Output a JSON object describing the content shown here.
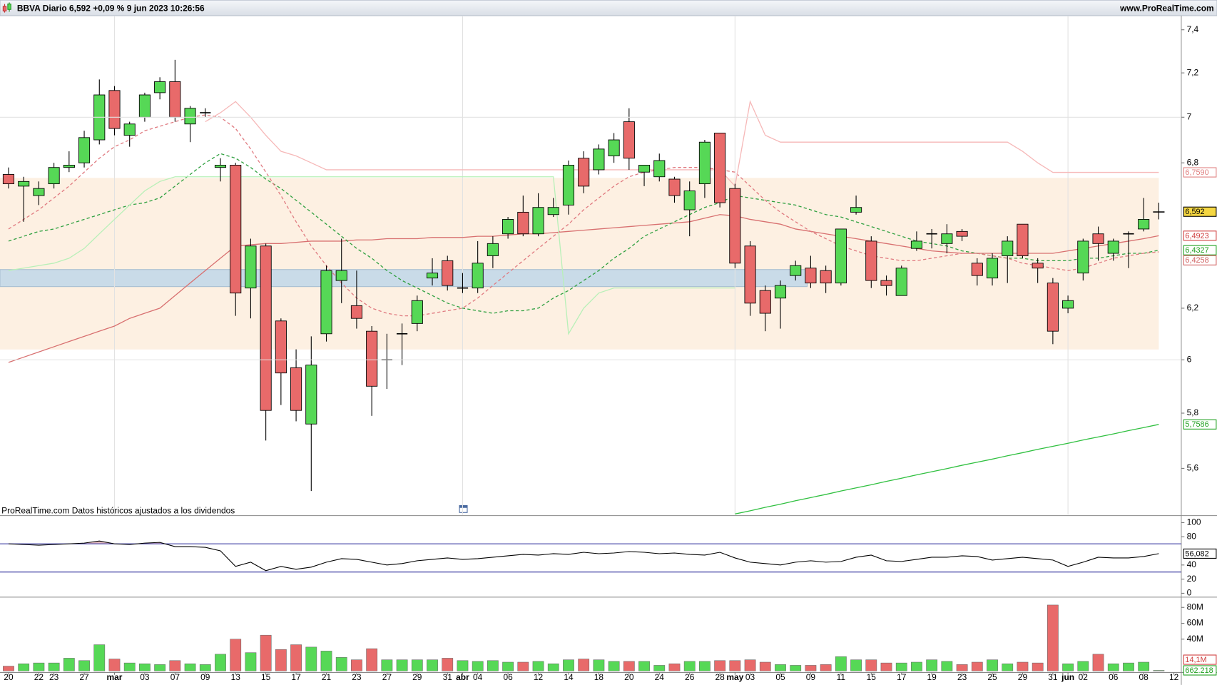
{
  "header": {
    "title": "BBVA Diario 6,592 +0,09 % 9 jun 2023 10:26:56",
    "source": "www.ProRealTime.com"
  },
  "footer_note": "ProRealTime.com Datos históricos ajustados a los dividendos",
  "chart_data": [
    {
      "type": "candlestick",
      "log_scale": true,
      "up_color": "#56d856",
      "down_color": "#e86a6a",
      "categories": [
        "20",
        null,
        "22",
        "23",
        null,
        "27",
        null,
        "mar",
        null,
        "03",
        null,
        "07",
        null,
        "09",
        null,
        "13",
        null,
        "15",
        null,
        "17",
        null,
        "21",
        null,
        "23",
        null,
        "27",
        null,
        "29",
        null,
        "31",
        "abr",
        "04",
        null,
        "06",
        null,
        "12",
        null,
        "14",
        null,
        "18",
        null,
        "20",
        null,
        "24",
        null,
        "26",
        null,
        "28",
        "may",
        "03",
        null,
        "05",
        null,
        "09",
        null,
        "11",
        null,
        "15",
        null,
        "17",
        null,
        "19",
        null,
        "23",
        null,
        "25",
        null,
        "29",
        null,
        "31",
        "jun",
        "02",
        null,
        "06",
        null,
        "08",
        null,
        "12"
      ],
      "open": [
        6.75,
        6.7,
        6.66,
        6.71,
        6.78,
        6.8,
        6.9,
        7.12,
        6.92,
        7.0,
        7.11,
        7.16,
        6.97,
        7.02,
        6.78,
        6.79,
        6.28,
        6.45,
        6.15,
        5.97,
        5.76,
        6.1,
        6.31,
        6.21,
        6.11,
        6.0,
        6.1,
        6.14,
        6.32,
        6.39,
        6.28,
        6.28,
        6.41,
        6.5,
        6.59,
        6.5,
        6.58,
        6.62,
        6.82,
        6.77,
        6.83,
        6.98,
        6.76,
        6.74,
        6.73,
        6.6,
        6.71,
        6.93,
        6.69,
        6.45,
        6.27,
        6.24,
        6.33,
        6.36,
        6.35,
        6.3,
        6.59,
        6.47,
        6.31,
        6.25,
        6.44,
        6.5,
        6.46,
        6.51,
        6.38,
        6.32,
        6.41,
        6.54,
        6.38,
        6.3,
        6.2,
        6.34,
        6.5,
        6.42,
        6.5,
        6.52,
        6.59,
        null
      ],
      "high": [
        6.78,
        6.74,
        6.72,
        6.8,
        6.85,
        6.94,
        7.17,
        7.14,
        6.98,
        7.11,
        7.18,
        7.26,
        7.05,
        7.04,
        6.82,
        6.8,
        6.48,
        6.46,
        6.16,
        6.04,
        6.09,
        6.37,
        6.48,
        6.35,
        6.13,
        6.1,
        6.14,
        6.25,
        6.4,
        6.41,
        6.34,
        6.47,
        6.49,
        6.57,
        6.66,
        6.67,
        6.65,
        6.81,
        6.85,
        6.88,
        6.93,
        7.04,
        6.79,
        6.84,
        6.74,
        6.72,
        6.9,
        6.93,
        6.71,
        6.47,
        6.29,
        6.31,
        6.39,
        6.41,
        6.37,
        6.52,
        6.66,
        6.49,
        6.33,
        6.37,
        6.51,
        6.52,
        6.54,
        6.52,
        6.4,
        6.42,
        6.49,
        6.54,
        6.4,
        6.32,
        6.25,
        6.48,
        6.53,
        6.48,
        6.51,
        6.65,
        6.63,
        null
      ],
      "low": [
        6.69,
        6.55,
        6.62,
        6.69,
        6.76,
        6.78,
        6.88,
        6.92,
        6.87,
        6.98,
        7.08,
        6.98,
        6.89,
        7.0,
        6.72,
        6.17,
        6.16,
        5.7,
        5.83,
        5.77,
        5.52,
        6.07,
        6.22,
        6.12,
        5.79,
        5.89,
        5.98,
        6.11,
        6.29,
        6.27,
        6.26,
        6.26,
        6.36,
        6.48,
        6.49,
        6.49,
        6.57,
        6.58,
        6.67,
        6.75,
        6.8,
        6.77,
        6.7,
        6.72,
        6.63,
        6.49,
        6.65,
        6.61,
        6.36,
        6.17,
        6.11,
        6.12,
        6.31,
        6.28,
        6.26,
        6.29,
        6.58,
        6.28,
        6.25,
        6.25,
        6.43,
        6.44,
        6.42,
        6.47,
        6.29,
        6.29,
        6.3,
        6.4,
        6.3,
        6.06,
        6.18,
        6.31,
        6.39,
        6.39,
        6.36,
        6.51,
        6.56,
        null
      ],
      "close": [
        6.71,
        6.72,
        6.69,
        6.78,
        6.79,
        6.91,
        7.1,
        6.95,
        6.97,
        7.1,
        7.16,
        7.0,
        7.04,
        7.02,
        6.79,
        6.26,
        6.45,
        5.81,
        5.95,
        5.81,
        5.98,
        6.35,
        6.35,
        6.16,
        5.9,
        6.0,
        6.1,
        6.23,
        6.34,
        6.29,
        6.28,
        6.38,
        6.46,
        6.56,
        6.5,
        6.61,
        6.61,
        6.79,
        6.7,
        6.86,
        6.9,
        6.82,
        6.79,
        6.81,
        6.66,
        6.68,
        6.89,
        6.63,
        6.38,
        6.22,
        6.18,
        6.29,
        6.37,
        6.3,
        6.3,
        6.52,
        6.61,
        6.31,
        6.29,
        6.36,
        6.47,
        6.5,
        6.5,
        6.49,
        6.33,
        6.4,
        6.47,
        6.41,
        6.36,
        6.11,
        6.23,
        6.47,
        6.46,
        6.47,
        6.5,
        6.56,
        6.592,
        null
      ],
      "ylim": [
        5.437,
        7.463
      ],
      "yticks": [
        {
          "value": 7.4,
          "label": "7,4"
        },
        {
          "value": 7.2,
          "label": "7,2"
        },
        7,
        {
          "value": 6.8,
          "label": "6,8"
        },
        {
          "value": 6.2,
          "label": "6,2"
        },
        6,
        {
          "value": 5.8,
          "label": "5,8"
        },
        {
          "value": 5.6,
          "label": "5,6"
        }
      ],
      "overlays": [
        {
          "color": "#d87070",
          "dash": false,
          "values": [
            5.99,
            6.01,
            6.03,
            6.05,
            6.07,
            6.09,
            6.11,
            6.13,
            6.16,
            6.18,
            6.2,
            6.25,
            6.3,
            6.35,
            6.4,
            6.45,
            6.455,
            6.46,
            6.46,
            6.465,
            6.47,
            6.47,
            6.47,
            6.475,
            6.475,
            6.48,
            6.48,
            6.48,
            6.485,
            6.485,
            6.485,
            6.49,
            6.49,
            6.495,
            6.5,
            6.5,
            6.505,
            6.51,
            6.515,
            6.52,
            6.525,
            6.53,
            6.535,
            6.54,
            6.545,
            6.55,
            6.565,
            6.58,
            6.575,
            6.56,
            6.55,
            6.54,
            6.52,
            6.51,
            6.5,
            6.49,
            6.48,
            6.47,
            6.46,
            6.45,
            6.44,
            6.43,
            6.425,
            6.42,
            6.42,
            6.42,
            6.42,
            6.42,
            6.42,
            6.42,
            6.43,
            6.44,
            6.45,
            6.46,
            6.47,
            6.48,
            6.4923,
            null
          ]
        },
        {
          "color": "#30c040",
          "dash": false,
          "values": [
            null,
            null,
            null,
            null,
            null,
            null,
            null,
            null,
            null,
            null,
            null,
            null,
            null,
            null,
            null,
            null,
            null,
            null,
            null,
            null,
            null,
            null,
            null,
            null,
            null,
            null,
            null,
            null,
            null,
            null,
            null,
            null,
            null,
            null,
            null,
            null,
            null,
            null,
            null,
            null,
            null,
            null,
            null,
            null,
            null,
            null,
            null,
            null,
            5.44,
            5.451,
            5.463,
            5.474,
            5.486,
            5.497,
            5.508,
            5.52,
            5.531,
            5.542,
            5.554,
            5.565,
            5.577,
            5.588,
            5.599,
            5.611,
            5.622,
            5.633,
            5.645,
            5.656,
            5.668,
            5.679,
            5.69,
            5.702,
            5.713,
            5.724,
            5.736,
            5.747,
            5.7586,
            null
          ]
        },
        {
          "color": "#30a040",
          "dash": true,
          "values": [
            6.47,
            6.49,
            6.51,
            6.52,
            6.54,
            6.56,
            6.58,
            6.6,
            6.62,
            6.63,
            6.65,
            6.7,
            6.75,
            6.8,
            6.84,
            6.82,
            6.78,
            6.73,
            6.69,
            6.64,
            6.59,
            6.54,
            6.49,
            6.44,
            6.4,
            6.35,
            6.31,
            6.28,
            6.25,
            6.22,
            6.2,
            6.19,
            6.18,
            6.19,
            6.19,
            6.2,
            6.24,
            6.27,
            6.31,
            6.35,
            6.4,
            6.44,
            6.49,
            6.52,
            6.55,
            6.58,
            6.61,
            6.63,
            6.66,
            6.65,
            6.64,
            6.63,
            6.62,
            6.6,
            6.58,
            6.57,
            6.55,
            6.53,
            6.51,
            6.49,
            6.47,
            6.46,
            6.45,
            6.43,
            6.42,
            6.41,
            6.4,
            6.4,
            6.39,
            6.39,
            6.39,
            6.4,
            6.4,
            6.41,
            6.42,
            6.42,
            6.4327,
            null
          ]
        },
        {
          "color": "#e07a80",
          "dash": true,
          "values": [
            6.52,
            6.56,
            6.6,
            6.65,
            6.7,
            6.76,
            6.82,
            6.87,
            6.9,
            6.94,
            6.96,
            6.98,
            7.0,
            7.01,
            7.0,
            6.95,
            6.86,
            6.76,
            6.66,
            6.55,
            6.45,
            6.37,
            6.3,
            6.24,
            6.2,
            6.18,
            6.17,
            6.17,
            6.18,
            6.19,
            6.2,
            6.24,
            6.29,
            6.34,
            6.39,
            6.44,
            6.49,
            6.54,
            6.6,
            6.65,
            6.7,
            6.74,
            6.76,
            6.77,
            6.78,
            6.78,
            6.78,
            6.77,
            6.76,
            6.7,
            6.64,
            6.59,
            6.55,
            6.51,
            6.48,
            6.45,
            6.43,
            6.41,
            6.4,
            6.39,
            6.39,
            6.4,
            6.41,
            6.42,
            6.42,
            6.41,
            6.4,
            6.38,
            6.37,
            6.36,
            6.35,
            6.36,
            6.38,
            6.4,
            6.41,
            6.42,
            6.4258,
            null
          ]
        },
        {
          "color": "#f6b8b8",
          "dash": false,
          "values": [
            null,
            null,
            null,
            null,
            null,
            null,
            null,
            null,
            null,
            null,
            null,
            null,
            null,
            6.98,
            7.02,
            7.07,
            7.0,
            6.92,
            6.85,
            6.83,
            6.8,
            6.77,
            6.77,
            6.77,
            6.77,
            6.77,
            6.77,
            6.77,
            6.77,
            6.77,
            6.77,
            6.77,
            6.77,
            6.77,
            6.77,
            6.77,
            6.77,
            6.77,
            6.77,
            6.77,
            6.77,
            6.77,
            6.77,
            6.77,
            6.77,
            6.77,
            6.77,
            6.77,
            6.7,
            7.07,
            6.92,
            6.89,
            6.89,
            6.89,
            6.89,
            6.89,
            6.89,
            6.89,
            6.89,
            6.89,
            6.89,
            6.89,
            6.89,
            6.89,
            6.89,
            6.89,
            6.89,
            6.85,
            6.8,
            6.759,
            6.759,
            6.759,
            6.759,
            6.759,
            6.759,
            6.759,
            6.759,
            null
          ]
        },
        {
          "color": "#b8f0b8",
          "dash": false,
          "values": [
            6.35,
            6.36,
            6.37,
            6.38,
            6.4,
            6.44,
            6.5,
            6.56,
            6.62,
            6.68,
            6.72,
            6.74,
            6.74,
            6.74,
            6.74,
            6.74,
            6.74,
            6.74,
            6.74,
            6.74,
            6.74,
            6.74,
            6.74,
            6.74,
            6.74,
            6.74,
            6.74,
            6.74,
            6.74,
            6.74,
            6.74,
            6.74,
            6.74,
            6.74,
            6.74,
            6.74,
            6.74,
            6.1,
            6.2,
            6.26,
            6.28,
            6.28,
            6.28,
            6.28,
            6.28,
            6.28,
            6.28,
            6.28,
            6.28,
            null,
            null,
            null,
            null,
            null,
            null,
            null,
            null,
            null,
            null,
            null,
            null,
            null,
            null,
            null,
            null,
            null,
            null,
            null,
            null,
            null,
            null,
            null,
            null,
            null,
            null,
            null,
            null,
            null
          ]
        }
      ],
      "tags": [
        {
          "value": 6.759,
          "label": "6,7590",
          "color": "#e08080",
          "fill": "#ffffff"
        },
        {
          "value": 6.592,
          "label": "6,592",
          "color": "#000000",
          "fill": "#f5d742"
        },
        {
          "value": 6.4923,
          "label": "6,4923",
          "color": "#d04040",
          "fill": "#ffffff"
        },
        {
          "value": 6.4327,
          "label": "6,4327",
          "color": "#20a020",
          "fill": "#ffffff"
        },
        {
          "value": 6.4258,
          "label": "6,4258",
          "color": "#d06060",
          "fill": "#ffffff"
        },
        {
          "value": 5.7586,
          "label": "5,7586",
          "color": "#20a020",
          "fill": "#ffffff"
        }
      ]
    },
    {
      "type": "line",
      "color": "#000000",
      "values": [
        70,
        69,
        68,
        69,
        70,
        71,
        74,
        70,
        69,
        71,
        72,
        66,
        66,
        65,
        60,
        38,
        44,
        32,
        38,
        34,
        37,
        44,
        49,
        48,
        44,
        40,
        42,
        46,
        48,
        50,
        48,
        49,
        51,
        53,
        55,
        54,
        56,
        55,
        58,
        56,
        57,
        59,
        58,
        56,
        57,
        55,
        54,
        58,
        50,
        44,
        42,
        40,
        44,
        46,
        44,
        45,
        51,
        54,
        46,
        45,
        48,
        51,
        51,
        53,
        52,
        47,
        49,
        51,
        49,
        47,
        38,
        44,
        51,
        50,
        50,
        52,
        56.082,
        null
      ],
      "ylim": [
        0,
        100
      ],
      "yticks": [
        100,
        80,
        40,
        20,
        0
      ],
      "levels": [
        70,
        30
      ],
      "level_color": "#2a2a9a",
      "overbought_fill": "#e4bcc4",
      "tags": [
        {
          "value": 56.082,
          "label": "56,082",
          "color": "#000000",
          "fill": "#ffffff"
        }
      ]
    },
    {
      "type": "bar",
      "values": [
        6000000,
        9000000,
        10000000,
        10000000,
        16000000,
        13000000,
        33000000,
        15000000,
        10000000,
        9000000,
        8000000,
        13000000,
        9000000,
        8000000,
        21000000,
        40000000,
        23000000,
        45000000,
        27000000,
        33000000,
        30000000,
        25000000,
        17000000,
        14000000,
        28000000,
        14000000,
        14000000,
        14000000,
        14000000,
        16000000,
        13000000,
        12000000,
        13000000,
        11000000,
        11000000,
        12000000,
        9000000,
        14000000,
        15000000,
        14000000,
        12000000,
        12000000,
        12000000,
        7000000,
        9000000,
        12000000,
        12000000,
        13000000,
        13000000,
        14000000,
        11000000,
        8000000,
        7000000,
        7000000,
        8000000,
        18000000,
        14000000,
        14000000,
        10000000,
        10000000,
        11000000,
        14000000,
        12000000,
        8000000,
        11000000,
        14000000,
        9000000,
        11000000,
        10000000,
        83000000,
        9000000,
        12000000,
        21000000,
        9000000,
        10000000,
        11000000,
        662218,
        null
      ],
      "ylim": [
        0,
        90000000
      ],
      "yticks": [
        {
          "value": 80000000,
          "label": "80M"
        },
        {
          "value": 60000000,
          "label": "60M"
        },
        {
          "value": 40000000,
          "label": "40M"
        }
      ],
      "tags": [
        {
          "value": 14100000,
          "label": "14,1M",
          "color": "#d04040",
          "fill": "#ffffff"
        },
        {
          "value": 662218,
          "label": "662.218",
          "color": "#20a020",
          "fill": "#ffffff"
        }
      ]
    }
  ]
}
